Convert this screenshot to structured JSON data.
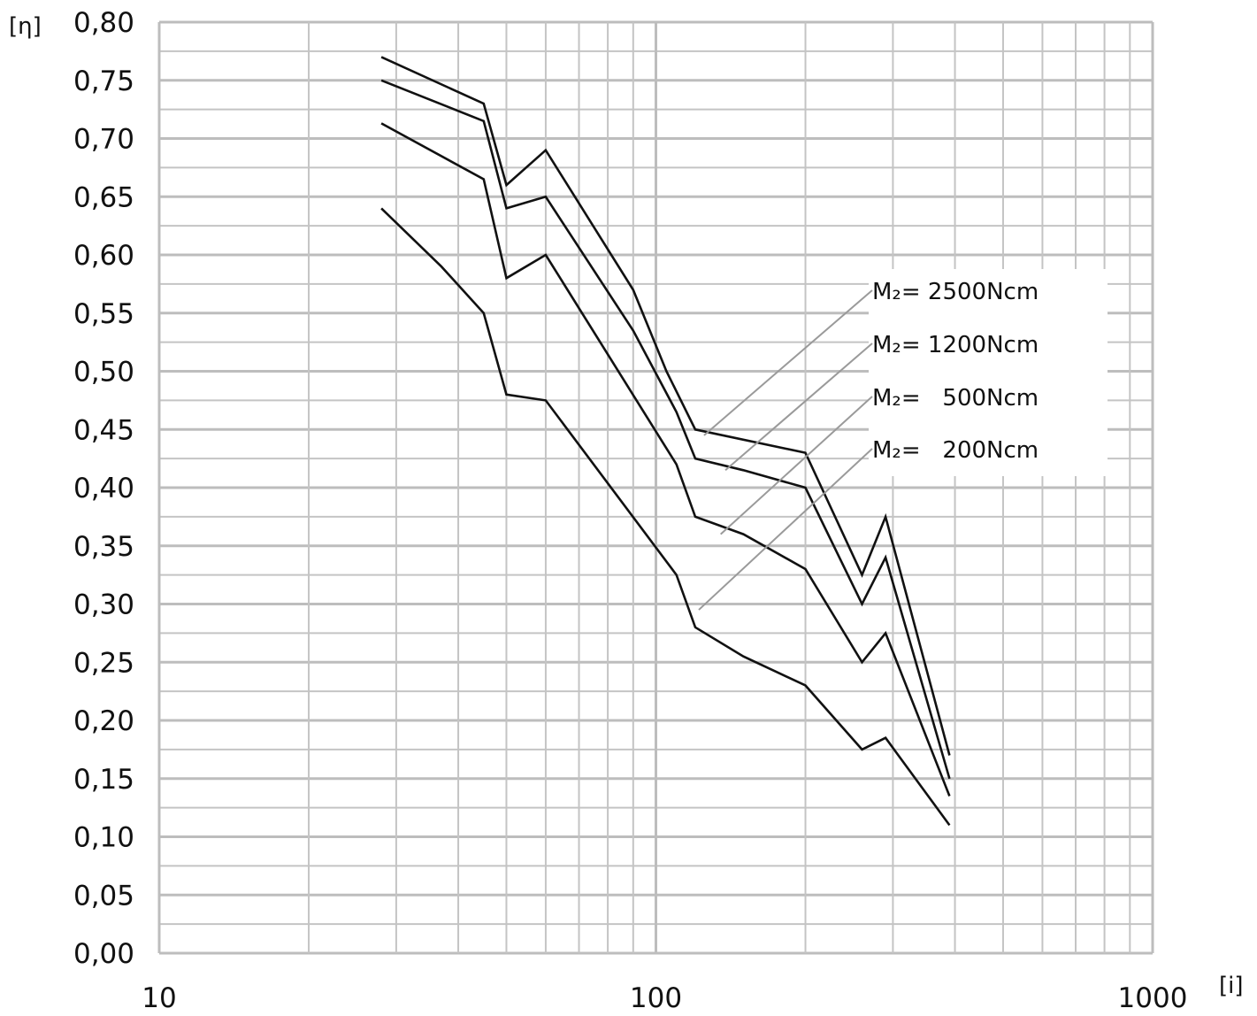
{
  "chart_data": {
    "type": "line",
    "xscale": "log",
    "xlim": [
      10,
      1000
    ],
    "ylim": [
      0.0,
      0.8
    ],
    "xlabel": "[i]",
    "ylabel": "[η]",
    "grid": true,
    "legend_placement": "right",
    "xticks": [
      "10",
      "100",
      "1000"
    ],
    "yticks": [
      "0,00",
      "0,05",
      "0,10",
      "0,15",
      "0,20",
      "0,25",
      "0,30",
      "0,35",
      "0,40",
      "0,45",
      "0,50",
      "0,55",
      "0,60",
      "0,65",
      "0,70",
      "0,75",
      "0,80"
    ],
    "series": [
      {
        "name": "M₂= 2500Ncm",
        "points": [
          [
            28,
            0.77
          ],
          [
            45,
            0.73
          ],
          [
            50,
            0.66
          ],
          [
            60,
            0.69
          ],
          [
            90,
            0.57
          ],
          [
            105,
            0.5
          ],
          [
            120,
            0.45
          ],
          [
            200,
            0.43
          ],
          [
            260,
            0.325
          ],
          [
            290,
            0.375
          ],
          [
            390,
            0.17
          ]
        ]
      },
      {
        "name": "M₂= 1200Ncm",
        "points": [
          [
            28,
            0.75
          ],
          [
            45,
            0.715
          ],
          [
            50,
            0.64
          ],
          [
            60,
            0.65
          ],
          [
            90,
            0.535
          ],
          [
            110,
            0.465
          ],
          [
            120,
            0.425
          ],
          [
            150,
            0.415
          ],
          [
            200,
            0.4
          ],
          [
            260,
            0.3
          ],
          [
            290,
            0.34
          ],
          [
            390,
            0.15
          ]
        ]
      },
      {
        "name": "M₂=   500Ncm",
        "points": [
          [
            28,
            0.713
          ],
          [
            45,
            0.665
          ],
          [
            50,
            0.58
          ],
          [
            60,
            0.6
          ],
          [
            110,
            0.42
          ],
          [
            120,
            0.375
          ],
          [
            150,
            0.36
          ],
          [
            200,
            0.33
          ],
          [
            260,
            0.25
          ],
          [
            290,
            0.275
          ],
          [
            390,
            0.135
          ]
        ]
      },
      {
        "name": "M₂=   200Ncm",
        "points": [
          [
            28,
            0.64
          ],
          [
            37,
            0.59
          ],
          [
            45,
            0.55
          ],
          [
            50,
            0.48
          ],
          [
            60,
            0.475
          ],
          [
            110,
            0.325
          ],
          [
            120,
            0.28
          ],
          [
            150,
            0.255
          ],
          [
            200,
            0.23
          ],
          [
            260,
            0.175
          ],
          [
            290,
            0.185
          ],
          [
            390,
            0.11
          ]
        ]
      }
    ],
    "leaders": [
      {
        "series": 0,
        "from": [
          125,
          0.445
        ]
      },
      {
        "series": 1,
        "from": [
          138,
          0.415
        ]
      },
      {
        "series": 2,
        "from": [
          135,
          0.36
        ]
      },
      {
        "series": 3,
        "from": [
          122,
          0.295
        ]
      }
    ]
  }
}
